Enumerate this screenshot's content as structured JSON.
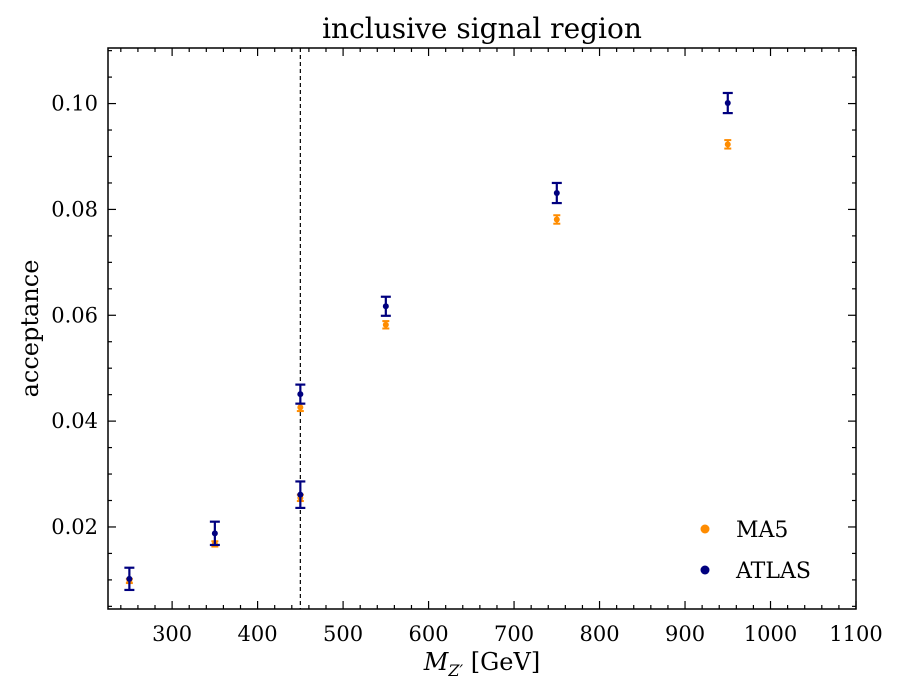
{
  "chart_data": {
    "type": "scatter",
    "title": "inclusive signal region",
    "xlabel_main": "M",
    "xlabel_sub": "Z′",
    "xlabel_unit": " [GeV]",
    "ylabel": "acceptance",
    "xlim": [
      225,
      1100
    ],
    "ylim": [
      0.0045,
      0.1105
    ],
    "xticks": [
      300,
      400,
      500,
      600,
      700,
      800,
      900,
      1000,
      1100
    ],
    "xtick_labels": [
      "300",
      "400",
      "500",
      "600",
      "700",
      "800",
      "900",
      "1000",
      "1100"
    ],
    "yticks": [
      0.02,
      0.04,
      0.06,
      0.08,
      0.1
    ],
    "ytick_labels": [
      "0.02",
      "0.04",
      "0.06",
      "0.08",
      "0.10"
    ],
    "xminor_step": 20,
    "yminor_step": 0.005,
    "vline_x": 450,
    "legend_position": "lower-right",
    "series": [
      {
        "name": "MA5",
        "color": "#ff8c00",
        "points": [
          {
            "x": 250,
            "y": 0.0098,
            "err": 0.0004
          },
          {
            "x": 350,
            "y": 0.0168,
            "err": 0.0005
          },
          {
            "x": 450,
            "y": 0.0255,
            "err": 0.0006
          },
          {
            "x": 450,
            "y": 0.0426,
            "err": 0.0007
          },
          {
            "x": 550,
            "y": 0.0582,
            "err": 0.0007
          },
          {
            "x": 750,
            "y": 0.0781,
            "err": 0.0008
          },
          {
            "x": 950,
            "y": 0.0923,
            "err": 0.0008
          }
        ]
      },
      {
        "name": "ATLAS",
        "color": "#00007f",
        "points": [
          {
            "x": 250,
            "y": 0.0102,
            "err": 0.0021
          },
          {
            "x": 350,
            "y": 0.0188,
            "err": 0.0022
          },
          {
            "x": 450,
            "y": 0.0261,
            "err": 0.0025
          },
          {
            "x": 450,
            "y": 0.0451,
            "err": 0.0018
          },
          {
            "x": 550,
            "y": 0.0617,
            "err": 0.0018
          },
          {
            "x": 750,
            "y": 0.0831,
            "err": 0.0019
          },
          {
            "x": 950,
            "y": 0.1001,
            "err": 0.0019
          }
        ]
      }
    ]
  }
}
